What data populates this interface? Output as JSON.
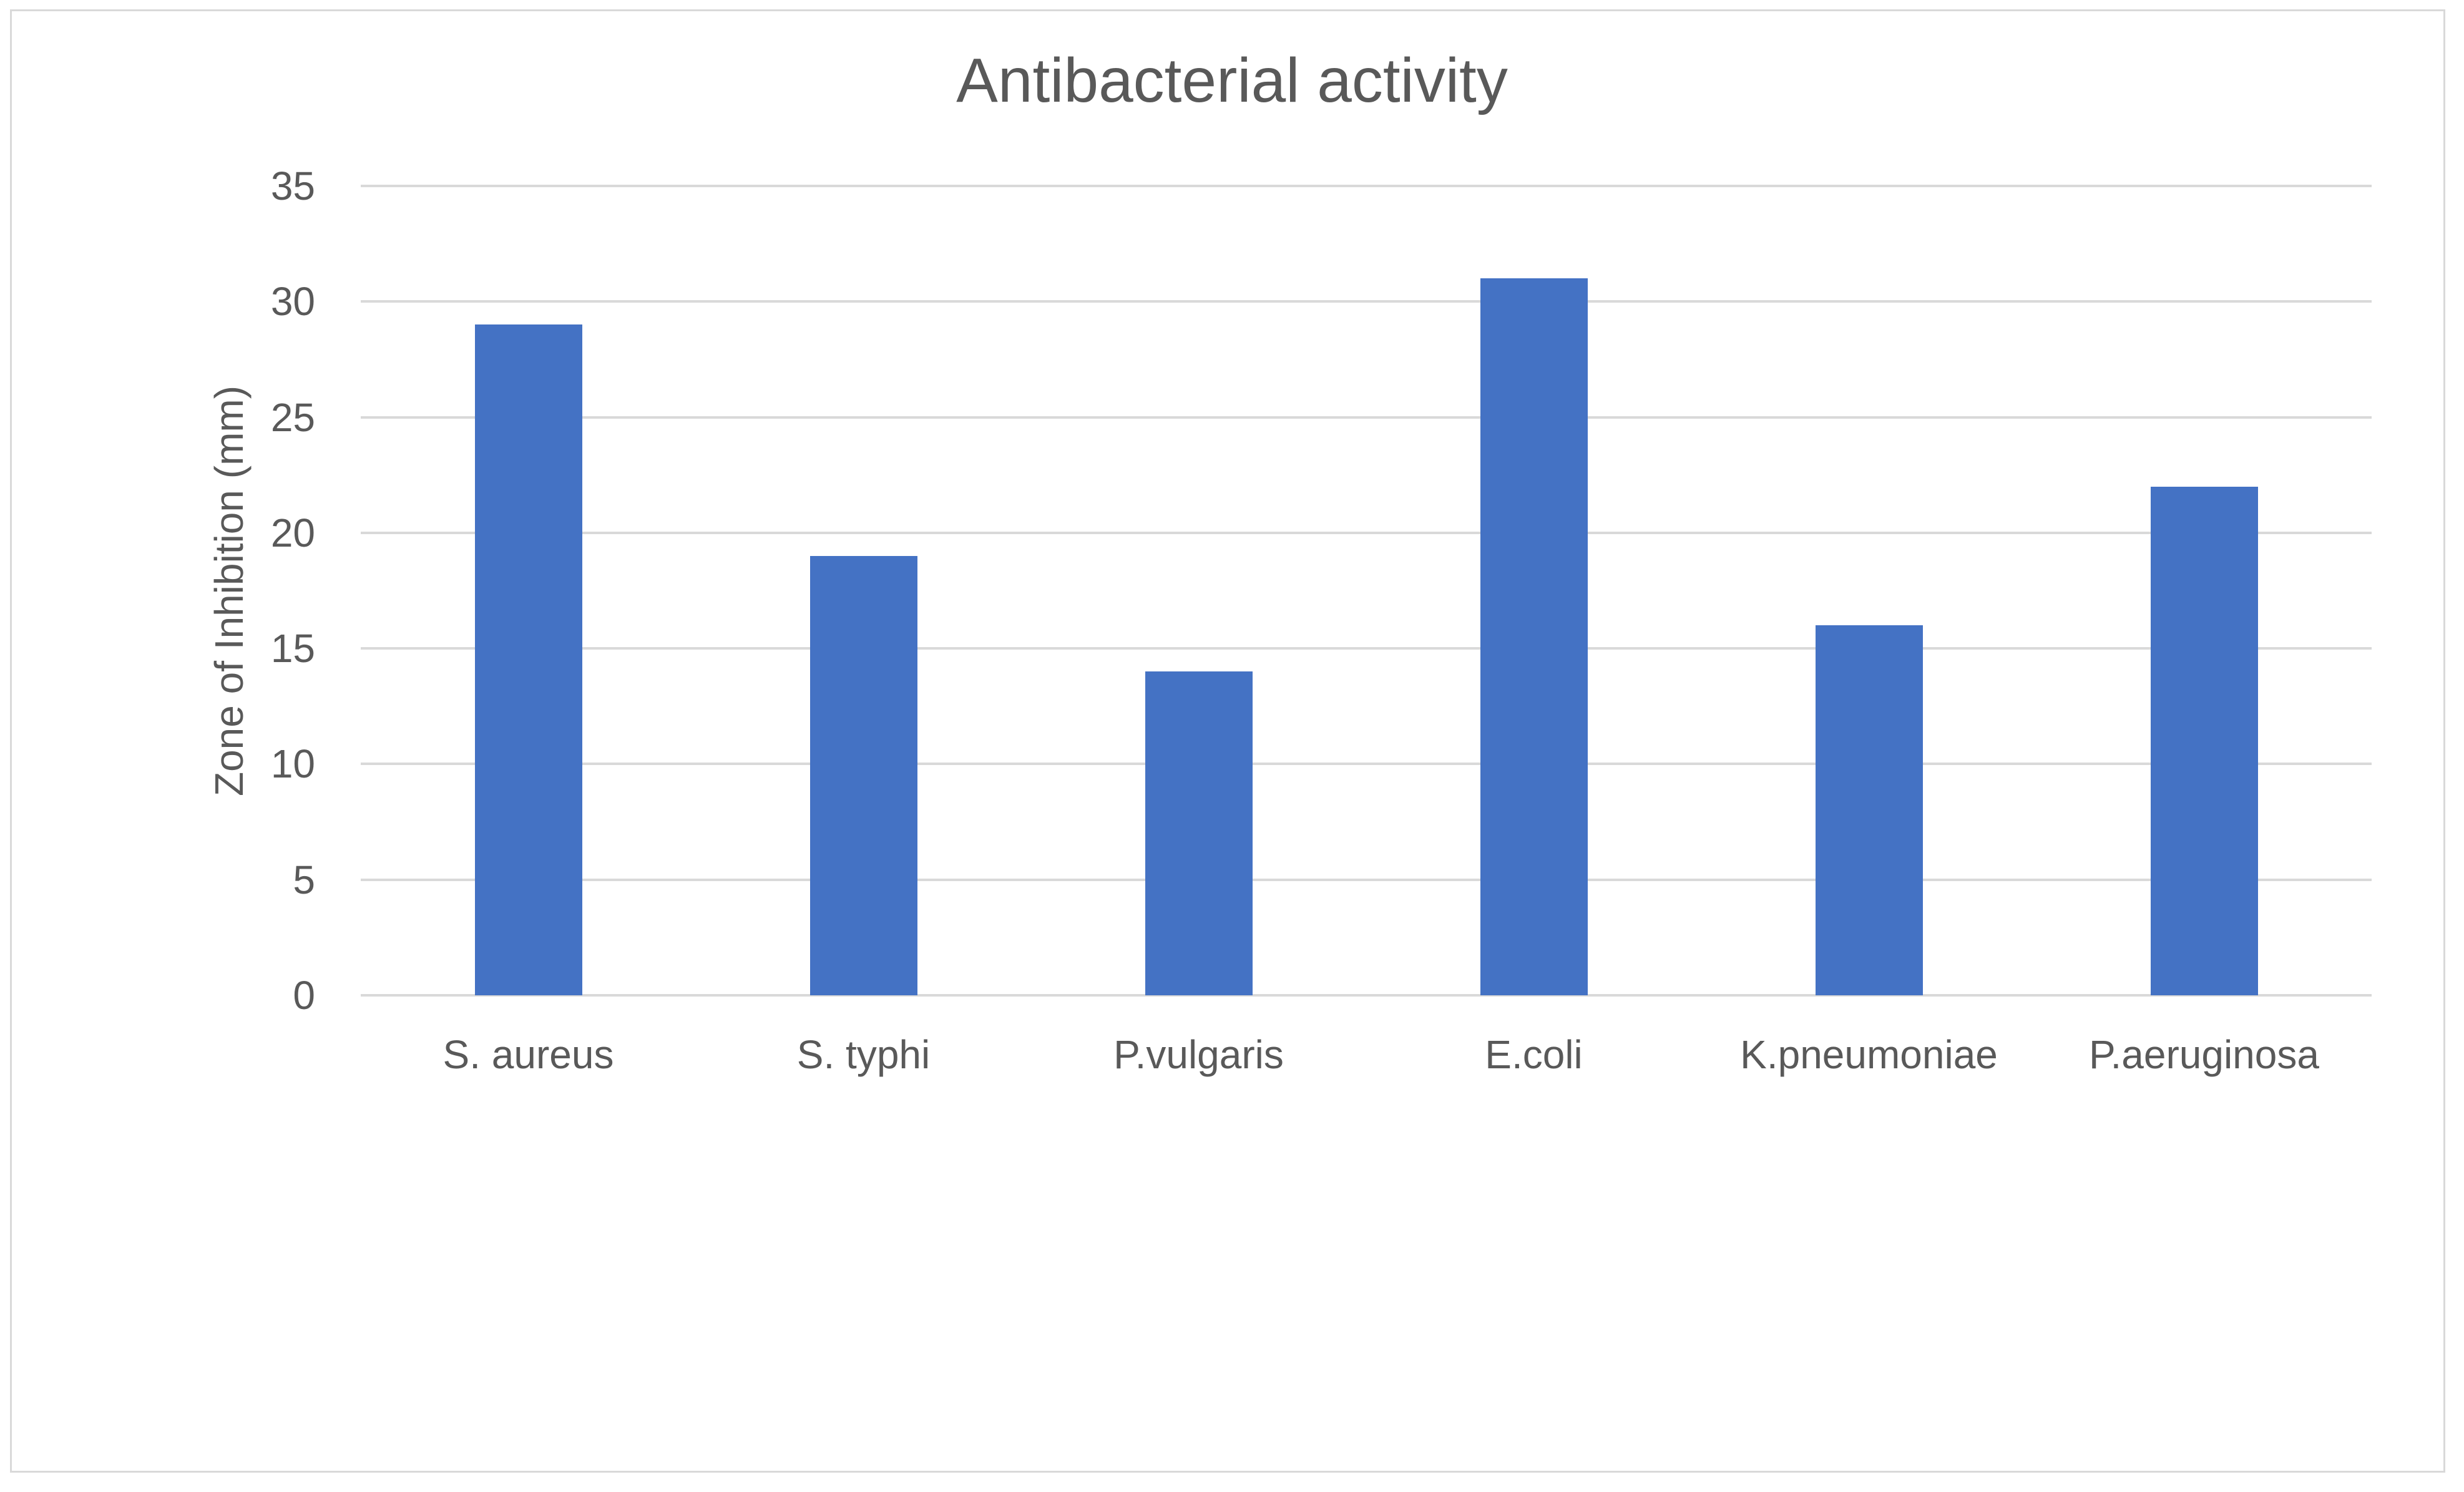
{
  "chart_data": {
    "type": "bar",
    "title": "Antibacterial activity",
    "xlabel": "",
    "ylabel": "Zone of Inhibition (mm)",
    "categories": [
      "S. aureus",
      "S. typhi",
      "P.vulgaris",
      "E.coli",
      "K.pneumoniae",
      "P.aeruginosa"
    ],
    "values": [
      29,
      19,
      14,
      31,
      16,
      22
    ],
    "ylim": [
      0,
      35
    ],
    "yticks": [
      0,
      5,
      10,
      15,
      20,
      25,
      30,
      35
    ],
    "grid": "horizontal",
    "legend": "none",
    "colors": {
      "bar": "#4472C4",
      "gridline": "#D9D9D9",
      "text": "#595959",
      "frame_border": "#D9D9D9",
      "background": "#FFFFFF"
    }
  }
}
